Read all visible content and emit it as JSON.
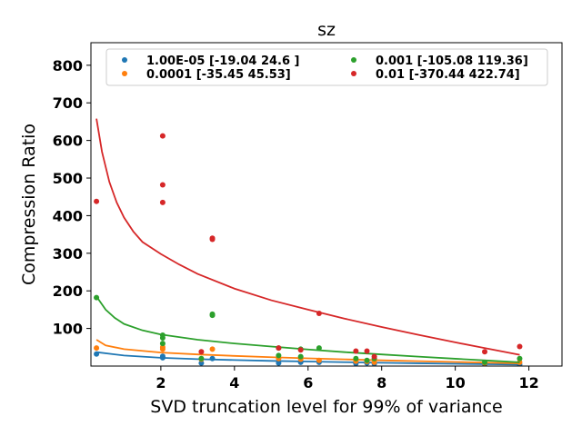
{
  "chart_data": {
    "type": "scatter",
    "title": "sz",
    "xlabel": "SVD truncation level for 99% of variance",
    "ylabel": "Compression Ratio",
    "xlim": [
      0.1,
      12.9
    ],
    "ylim": [
      0,
      860
    ],
    "xticks": [
      2,
      4,
      6,
      8,
      10,
      12
    ],
    "xtick_labels": [
      "2",
      "4",
      "6",
      "8",
      "10",
      "12"
    ],
    "yticks": [
      100,
      200,
      300,
      400,
      500,
      600,
      700,
      800
    ],
    "ytick_labels": [
      "100",
      "200",
      "300",
      "400",
      "500",
      "600",
      "700",
      "800"
    ],
    "grid": false,
    "legend_position": "top",
    "series": [
      {
        "name": "1.00E-05 [-19.04  24.6 ]",
        "color": "#1f77b4",
        "points": [
          [
            0.25,
            32
          ],
          [
            2.05,
            22
          ],
          [
            2.05,
            26
          ],
          [
            3.1,
            8
          ],
          [
            3.4,
            20
          ],
          [
            5.2,
            8
          ],
          [
            5.8,
            10
          ],
          [
            6.3,
            10
          ],
          [
            7.3,
            7
          ],
          [
            7.6,
            8
          ],
          [
            7.8,
            6
          ],
          [
            10.8,
            5
          ],
          [
            11.75,
            4
          ]
        ],
        "curve": [
          [
            0.25,
            37
          ],
          [
            1,
            28
          ],
          [
            2,
            22
          ],
          [
            3,
            18.5
          ],
          [
            4,
            16
          ],
          [
            5,
            13.8
          ],
          [
            6,
            12
          ],
          [
            7,
            10.3
          ],
          [
            8,
            8.8
          ],
          [
            9,
            7.4
          ],
          [
            10,
            6
          ],
          [
            11,
            4.8
          ],
          [
            11.75,
            4
          ]
        ]
      },
      {
        "name": "0.0001 [-35.45  45.53]",
        "color": "#ff7f0e",
        "points": [
          [
            0.25,
            48
          ],
          [
            2.05,
            45
          ],
          [
            2.05,
            50
          ],
          [
            3.1,
            18
          ],
          [
            3.4,
            45
          ],
          [
            5.2,
            20
          ],
          [
            5.8,
            18
          ],
          [
            6.3,
            15
          ],
          [
            7.3,
            13
          ],
          [
            7.6,
            12
          ],
          [
            7.8,
            10
          ],
          [
            10.8,
            8
          ],
          [
            11.75,
            10
          ]
        ],
        "curve": [
          [
            0.25,
            70
          ],
          [
            0.5,
            55
          ],
          [
            1,
            45
          ],
          [
            2,
            36
          ],
          [
            3,
            31
          ],
          [
            4,
            27
          ],
          [
            5,
            23.5
          ],
          [
            6,
            20.5
          ],
          [
            7,
            17.8
          ],
          [
            8,
            15.3
          ],
          [
            9,
            13
          ],
          [
            10,
            10.8
          ],
          [
            11,
            8.8
          ],
          [
            11.75,
            7
          ]
        ]
      },
      {
        "name": "0.001 [-105.08  119.36]",
        "color": "#2ca02c",
        "points": [
          [
            0.25,
            182
          ],
          [
            2.05,
            60
          ],
          [
            2.05,
            75
          ],
          [
            2.05,
            82
          ],
          [
            3.1,
            20
          ],
          [
            3.4,
            135
          ],
          [
            3.4,
            138
          ],
          [
            5.2,
            28
          ],
          [
            5.2,
            48
          ],
          [
            5.8,
            25
          ],
          [
            5.8,
            45
          ],
          [
            6.3,
            48
          ],
          [
            7.3,
            20
          ],
          [
            7.6,
            15
          ],
          [
            7.8,
            20
          ],
          [
            10.8,
            10
          ],
          [
            11.75,
            20
          ]
        ],
        "curve": [
          [
            0.25,
            185
          ],
          [
            0.5,
            150
          ],
          [
            0.75,
            128
          ],
          [
            1,
            112
          ],
          [
            1.5,
            95
          ],
          [
            2,
            84
          ],
          [
            3,
            70
          ],
          [
            4,
            60
          ],
          [
            5,
            52
          ],
          [
            6,
            44
          ],
          [
            7,
            37
          ],
          [
            8,
            31
          ],
          [
            9,
            25
          ],
          [
            10,
            19.5
          ],
          [
            11,
            14
          ],
          [
            11.75,
            10
          ]
        ]
      },
      {
        "name": "0.01 [-370.44  422.74]",
        "color": "#d62728",
        "points": [
          [
            0.25,
            438
          ],
          [
            2.05,
            612
          ],
          [
            2.05,
            482
          ],
          [
            2.05,
            435
          ],
          [
            3.1,
            38
          ],
          [
            3.4,
            340
          ],
          [
            3.4,
            337
          ],
          [
            5.2,
            48
          ],
          [
            5.8,
            43
          ],
          [
            6.3,
            140
          ],
          [
            7.3,
            40
          ],
          [
            7.6,
            40
          ],
          [
            7.8,
            25
          ],
          [
            10.8,
            38
          ],
          [
            11.75,
            52
          ]
        ],
        "curve": [
          [
            0.25,
            658
          ],
          [
            0.4,
            570
          ],
          [
            0.6,
            490
          ],
          [
            0.8,
            435
          ],
          [
            1,
            395
          ],
          [
            1.25,
            358
          ],
          [
            1.5,
            330
          ],
          [
            2,
            298
          ],
          [
            2.5,
            270
          ],
          [
            3,
            245
          ],
          [
            4,
            206
          ],
          [
            5,
            175
          ],
          [
            6,
            150
          ],
          [
            7,
            126
          ],
          [
            8,
            104
          ],
          [
            9,
            83
          ],
          [
            10,
            63
          ],
          [
            11,
            44
          ],
          [
            11.75,
            30
          ]
        ]
      }
    ]
  }
}
